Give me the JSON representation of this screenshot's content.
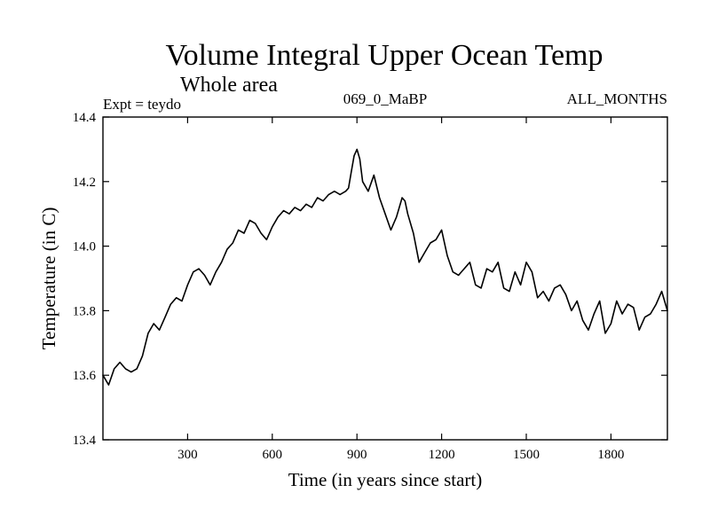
{
  "chart_data": {
    "type": "line",
    "title": "Volume Integral Upper Ocean Temp",
    "subtitle": "Whole area",
    "expt_label": "Expt = teydo",
    "run_label": "069_0_MaBP",
    "period_label": "ALL_MONTHS",
    "xlabel": "Time (in years since start)",
    "ylabel": "Temperature (in C)",
    "xlim": [
      0,
      2000
    ],
    "ylim": [
      13.4,
      14.4
    ],
    "xticks": [
      300,
      600,
      900,
      1200,
      1500,
      1800
    ],
    "yticks": [
      13.4,
      13.6,
      13.8,
      14.0,
      14.2,
      14.4
    ],
    "ytick_labels": [
      "13.4",
      "13.6",
      "13.8",
      "14.0",
      "14.2",
      "14.4"
    ],
    "grid": false,
    "series": [
      {
        "name": "Volume Integral Upper Ocean Temp",
        "color": "#000000",
        "x": [
          0,
          20,
          40,
          60,
          80,
          100,
          120,
          140,
          160,
          180,
          200,
          220,
          240,
          260,
          280,
          300,
          320,
          340,
          360,
          380,
          400,
          420,
          440,
          460,
          480,
          500,
          520,
          540,
          560,
          580,
          600,
          620,
          640,
          660,
          680,
          700,
          720,
          740,
          760,
          780,
          800,
          820,
          840,
          860,
          870,
          880,
          890,
          900,
          910,
          920,
          940,
          960,
          980,
          1000,
          1020,
          1040,
          1060,
          1070,
          1080,
          1100,
          1120,
          1140,
          1160,
          1180,
          1200,
          1220,
          1240,
          1260,
          1280,
          1300,
          1320,
          1340,
          1360,
          1380,
          1400,
          1420,
          1440,
          1460,
          1480,
          1500,
          1520,
          1540,
          1560,
          1580,
          1600,
          1620,
          1640,
          1660,
          1680,
          1700,
          1720,
          1740,
          1760,
          1780,
          1800,
          1820,
          1840,
          1860,
          1880,
          1900,
          1920,
          1940,
          1960,
          1980,
          2000
        ],
        "values": [
          13.6,
          13.57,
          13.62,
          13.64,
          13.62,
          13.61,
          13.62,
          13.66,
          13.73,
          13.76,
          13.74,
          13.78,
          13.82,
          13.84,
          13.83,
          13.88,
          13.92,
          13.93,
          13.91,
          13.88,
          13.92,
          13.95,
          13.99,
          14.01,
          14.05,
          14.04,
          14.08,
          14.07,
          14.04,
          14.02,
          14.06,
          14.09,
          14.11,
          14.1,
          14.12,
          14.11,
          14.13,
          14.12,
          14.15,
          14.14,
          14.16,
          14.17,
          14.16,
          14.17,
          14.18,
          14.23,
          14.28,
          14.3,
          14.27,
          14.2,
          14.17,
          14.22,
          14.15,
          14.1,
          14.05,
          14.09,
          14.15,
          14.14,
          14.1,
          14.04,
          13.95,
          13.98,
          14.01,
          14.02,
          14.05,
          13.97,
          13.92,
          13.91,
          13.93,
          13.95,
          13.88,
          13.87,
          13.93,
          13.92,
          13.95,
          13.87,
          13.86,
          13.92,
          13.88,
          13.95,
          13.92,
          13.84,
          13.86,
          13.83,
          13.87,
          13.88,
          13.85,
          13.8,
          13.83,
          13.77,
          13.74,
          13.79,
          13.83,
          13.73,
          13.76,
          13.83,
          13.79,
          13.82,
          13.81,
          13.74,
          13.78,
          13.79,
          13.82,
          13.86,
          13.8
        ]
      }
    ]
  }
}
